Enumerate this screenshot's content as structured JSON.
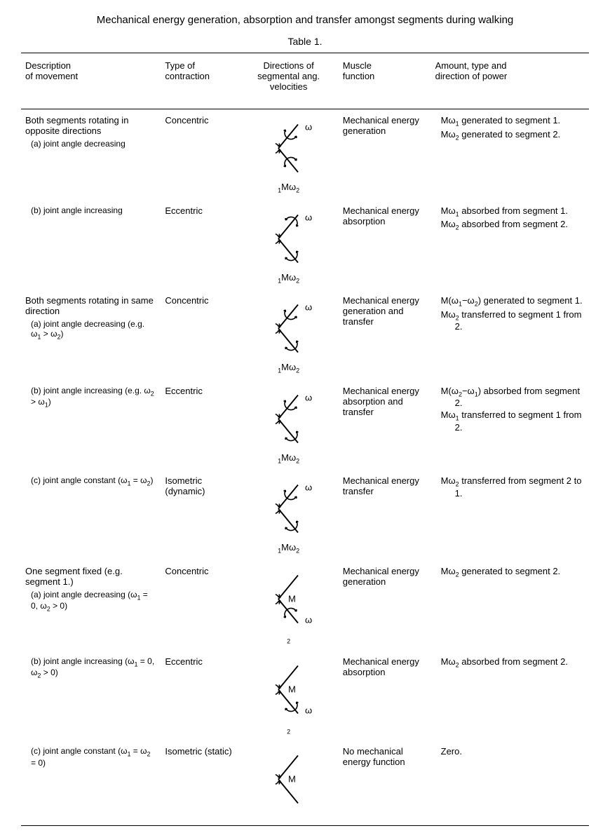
{
  "title": "Mechanical energy generation, absorption and transfer amongst segments during walking",
  "caption": "Table 1.",
  "headers": {
    "desc": "Description\nof movement",
    "contr": "Type of\ncontraction",
    "diag": "Directions of\nsegmental ang.\nvelocities",
    "func": "Muscle\nfunction",
    "power": "Amount, type and\ndirection of power"
  },
  "diagram_style": {
    "stroke": "#000000",
    "stroke_width": 1.6,
    "arrow_len": 6,
    "sub_font_pt": 9
  },
  "rows": [
    {
      "intro": "Both segments rotating in opposite directions",
      "sub": "(a) joint angle decreasing",
      "contr": "Concentric",
      "diag": {
        "w1_arrow": "ccw",
        "w2_arrow": "cw",
        "labels": [
          "ω1",
          "M",
          "ω2"
        ]
      },
      "func": "Mechanical energy generation",
      "power": [
        "Mω1 generated to segment 1.",
        "Mω2 generated to segment 2."
      ]
    },
    {
      "intro": "",
      "sub": "(b) joint angle increasing",
      "contr": "Eccentric",
      "diag": {
        "w1_arrow": "cw",
        "w2_arrow": "ccw",
        "labels": [
          "ω1",
          "M",
          "ω2"
        ]
      },
      "func": "Mechanical energy absorption",
      "power": [
        "Mω1 absorbed from segment 1.",
        "Mω2 absorbed from segment 2."
      ]
    },
    {
      "intro": "Both segments rotating in same direction",
      "sub": "(a) joint angle decreasing (e.g. ω1 > ω2)",
      "contr": "Concentric",
      "diag": {
        "w1_arrow": "ccw",
        "w2_arrow": "ccw",
        "labels": [
          "ω1",
          "M",
          "ω2"
        ]
      },
      "func": "Mechanical energy generation and transfer",
      "power": [
        "M(ω1−ω2) generated to segment 1.",
        "Mω2 transferred to segment 1 from 2."
      ]
    },
    {
      "intro": "",
      "sub": "(b) joint angle increasing (e.g. ω2 > ω1)",
      "contr": "Eccentric",
      "diag": {
        "w1_arrow": "ccw",
        "w2_arrow": "ccw",
        "labels": [
          "ω1",
          "M",
          "ω2"
        ]
      },
      "func": "Mechanical energy absorption and transfer",
      "power": [
        "M(ω2−ω1) absorbed from segment 2.",
        "Mω1 transferred to segment 1 from 2."
      ]
    },
    {
      "intro": "",
      "sub": "(c) joint angle constant (ω1 = ω2)",
      "contr": "Isometric (dynamic)",
      "diag": {
        "w1_arrow": "ccw",
        "w2_arrow": "ccw",
        "labels": [
          "ω1",
          "M",
          "ω2"
        ]
      },
      "func": "Mechanical energy transfer",
      "power": [
        "Mω2 transferred from segment 2 to 1."
      ]
    },
    {
      "intro": "One segment fixed (e.g. segment 1.)",
      "sub": "(a) joint angle decreasing (ω1 = 0, ω2 > 0)",
      "contr": "Concentric",
      "diag": {
        "w1_arrow": "none",
        "w2_arrow": "cw",
        "labels": [
          "",
          "M",
          "ω2"
        ]
      },
      "func": "Mechanical energy generation",
      "power": [
        "Mω2 generated to segment 2."
      ]
    },
    {
      "intro": "",
      "sub": "(b) joint angle increasing (ω1 = 0, ω2 > 0)",
      "contr": "Eccentric",
      "diag": {
        "w1_arrow": "none",
        "w2_arrow": "ccw",
        "labels": [
          "",
          "M",
          "ω2"
        ]
      },
      "func": "Mechanical energy absorption",
      "power": [
        "Mω2 absorbed from segment 2."
      ]
    },
    {
      "intro": "",
      "sub": "(c) joint angle constant (ω1 = ω2 = 0)",
      "contr": "Isometric (static)",
      "diag": {
        "w1_arrow": "none",
        "w2_arrow": "none",
        "labels": [
          "",
          "M",
          ""
        ]
      },
      "func": "No mechanical energy function",
      "power": [
        "Zero."
      ]
    }
  ]
}
